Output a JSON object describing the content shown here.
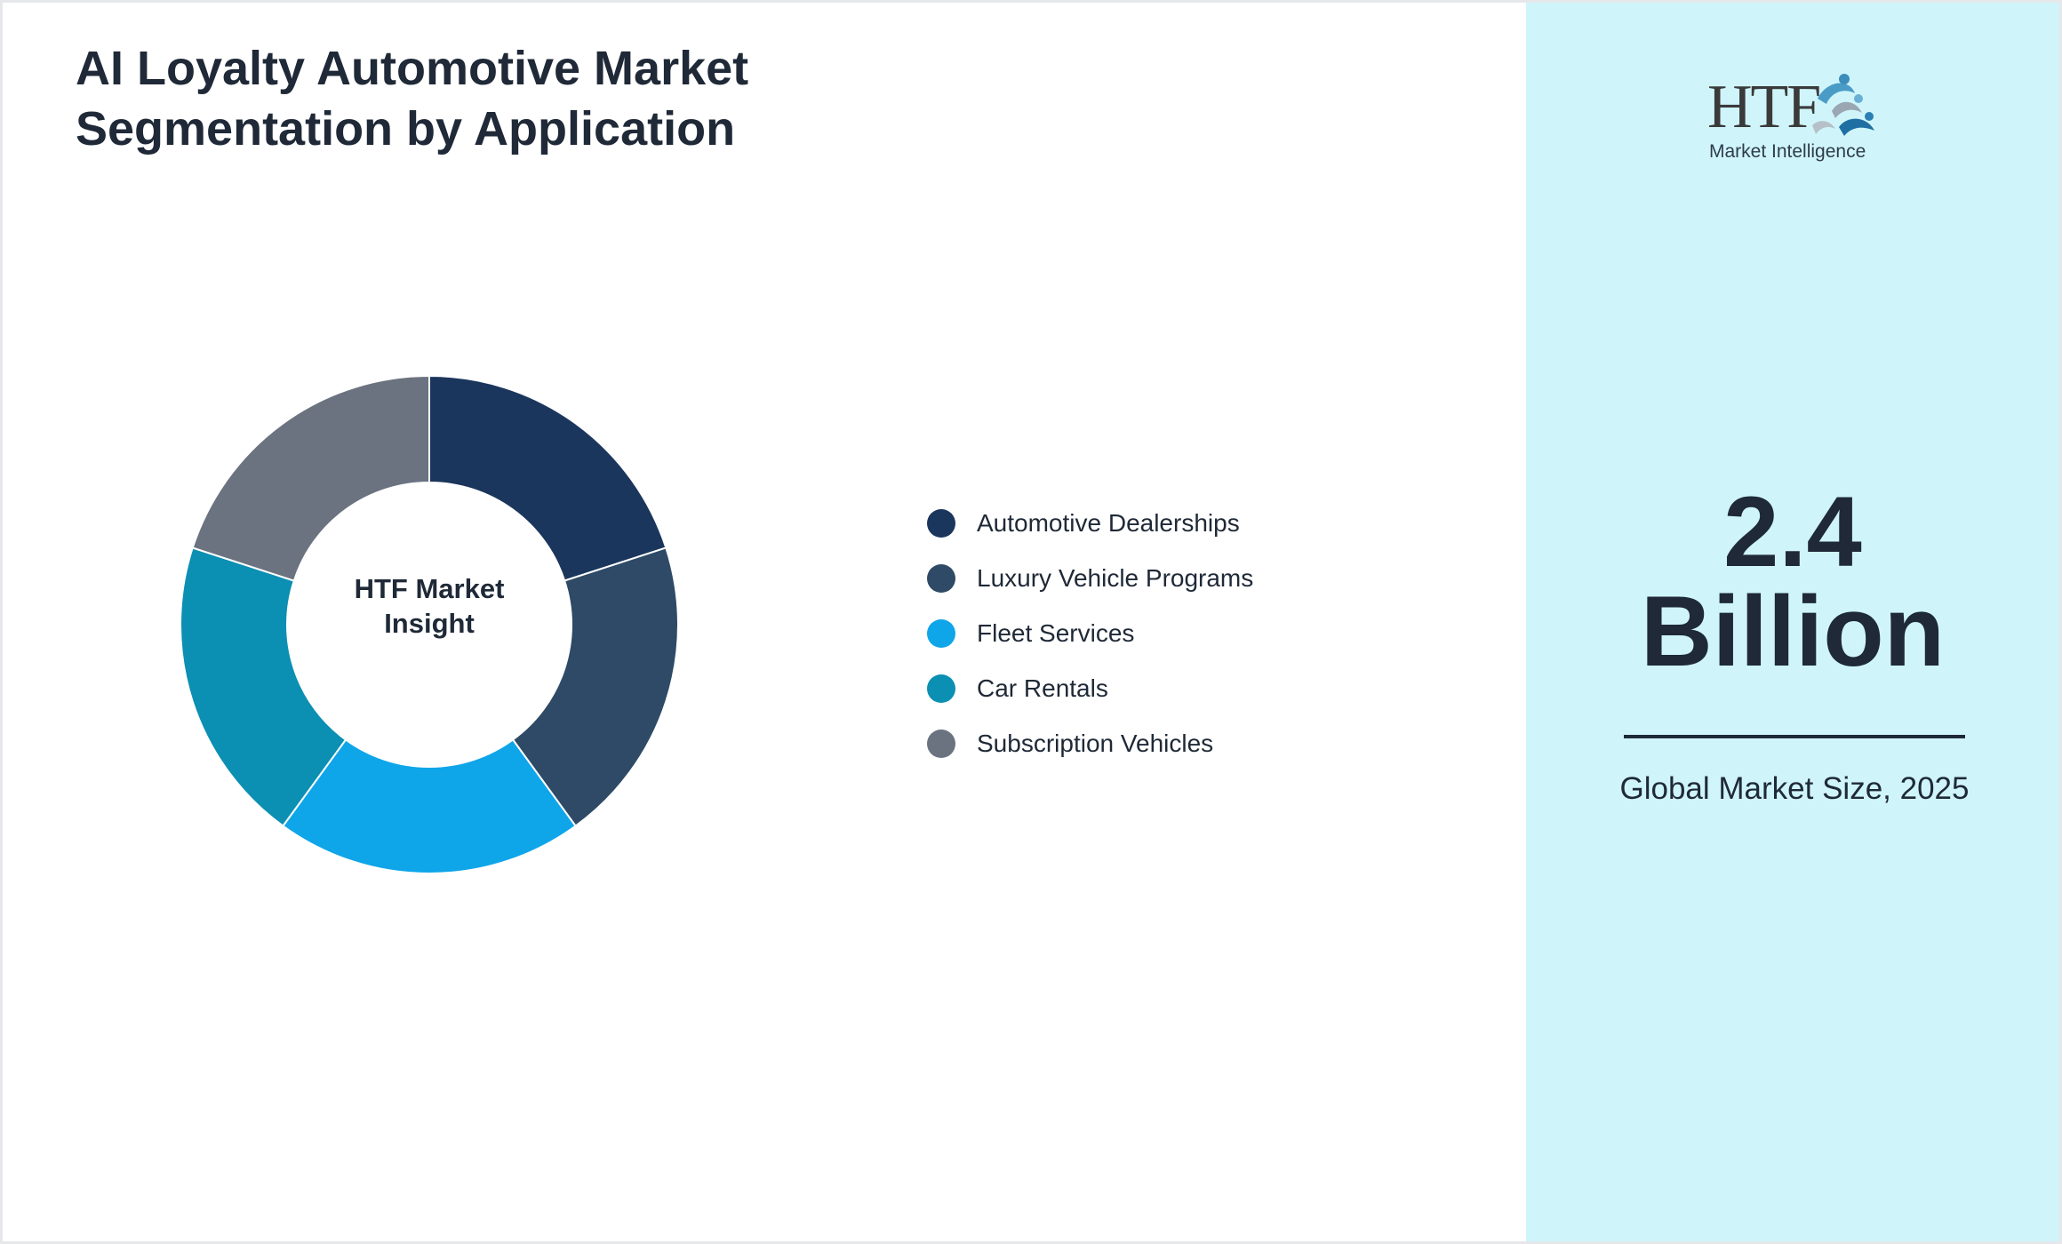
{
  "title": "AI Loyalty Automotive Market Segmentation by Application",
  "chart_data": {
    "type": "pie",
    "variant": "donut",
    "center_label": "HTF Market\nInsight",
    "categories": [
      "Automotive Dealerships",
      "Luxury Vehicle Programs",
      "Fleet Services",
      "Car Rentals",
      "Subscription Vehicles"
    ],
    "values": [
      20,
      20,
      20,
      20,
      20
    ],
    "colors": [
      "#1b365d",
      "#2e4a66",
      "#0fa5e9",
      "#0b8fb3",
      "#6b7280"
    ],
    "legend_position": "right"
  },
  "side_panel": {
    "logo": {
      "letters": "HTF",
      "subtitle": "Market Intelligence"
    },
    "market_value": "2.4",
    "market_unit": "Billion",
    "caption": "Global Market Size, 2025",
    "background": "#cff5fb"
  }
}
